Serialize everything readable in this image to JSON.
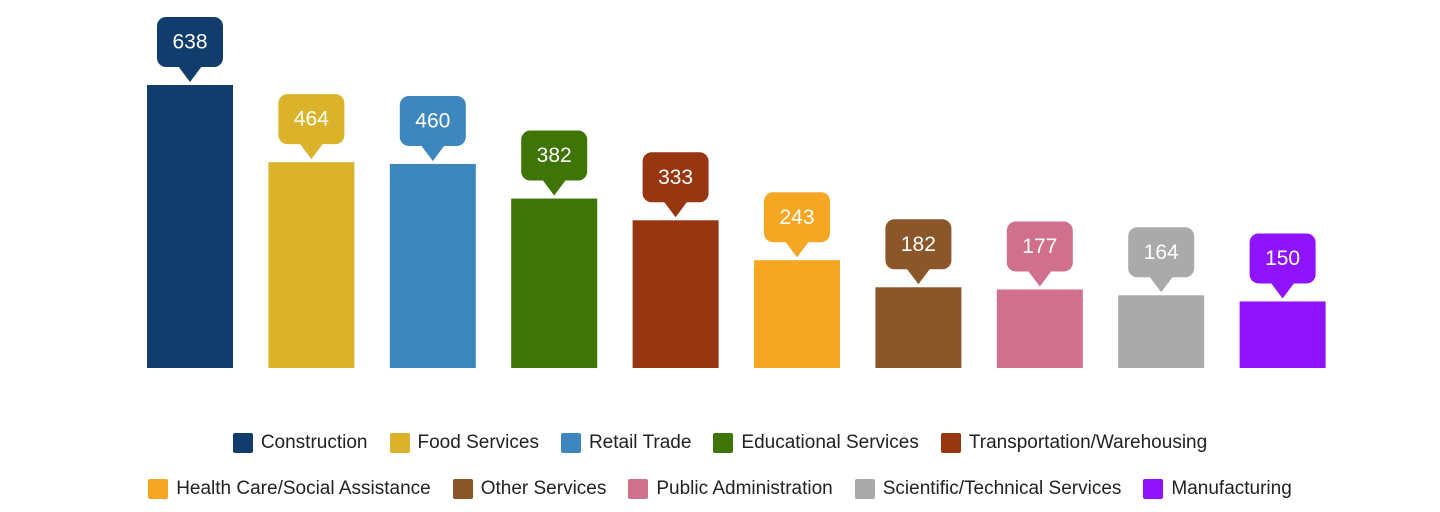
{
  "chart_data": {
    "type": "bar",
    "categories": [
      "Construction",
      "Food Services",
      "Retail Trade",
      "Educational Services",
      "Transportation/Warehousing",
      "Health Care/Social Assistance",
      "Other Services",
      "Public Administration",
      "Scientific/Technical Services",
      "Manufacturing"
    ],
    "values": [
      638,
      464,
      460,
      382,
      333,
      243,
      182,
      177,
      164,
      150
    ],
    "colors": [
      "#103d6b",
      "#dbb32a",
      "#3e86be",
      "#3f7507",
      "#963711",
      "#f5a623",
      "#8b572a",
      "#d0708c",
      "#aaaaaa",
      "#9013fe"
    ],
    "legend": "bottom"
  }
}
